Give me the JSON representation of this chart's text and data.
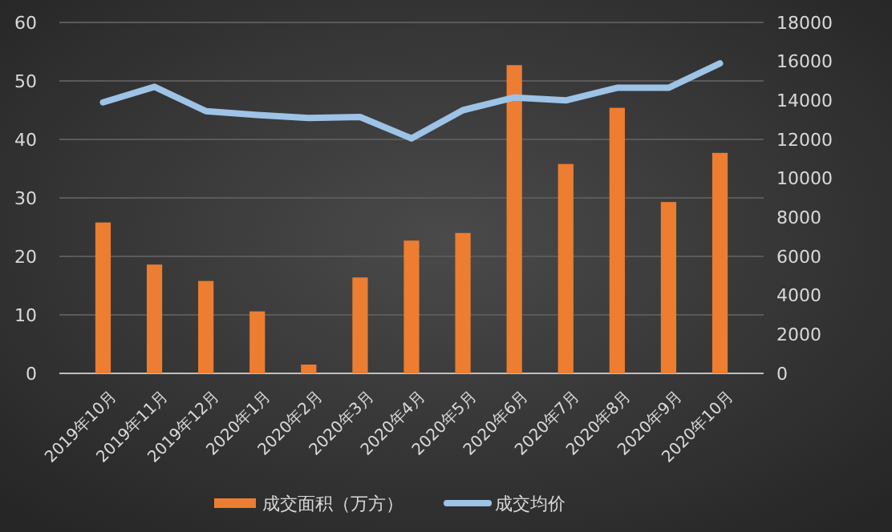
{
  "chart_data": {
    "type": "bar",
    "categories": [
      "2019年10月",
      "2019年11月",
      "2019年12月",
      "2020年1月",
      "2020年2月",
      "2020年3月",
      "2020年4月",
      "2020年5月",
      "2020年6月",
      "2020年7月",
      "2020年8月",
      "2020年9月",
      "2020年10月"
    ],
    "series": [
      {
        "name": "成交面积（万方）",
        "color": "#ed7d31",
        "values": [
          25.8,
          18.6,
          15.8,
          10.6,
          1.5,
          16.4,
          22.7,
          24.0,
          52.7,
          35.8,
          45.4,
          29.3,
          37.7
        ]
      },
      {
        "name": "成交均价",
        "type": "line",
        "axis": "y2",
        "color": "#9dc3e6",
        "values": [
          13900,
          14700,
          13450,
          13250,
          13100,
          13150,
          12050,
          13500,
          14150,
          14000,
          14650,
          14650,
          15900
        ]
      }
    ],
    "ylim": [
      0,
      60
    ],
    "yticks": [
      0,
      10,
      20,
      30,
      40,
      50,
      60
    ],
    "y2lim": [
      0,
      18000
    ],
    "y2ticks": [
      0,
      2000,
      4000,
      6000,
      8000,
      10000,
      12000,
      14000,
      16000,
      18000
    ],
    "grid": "y",
    "legend": "bottom"
  }
}
